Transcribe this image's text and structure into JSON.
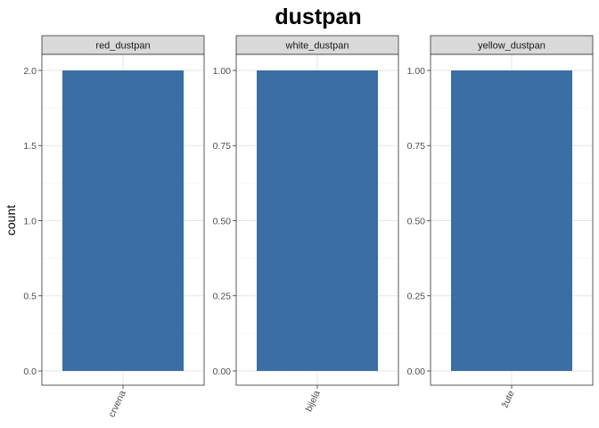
{
  "chart_data": {
    "type": "bar",
    "title": "dustpan",
    "ylabel": "count",
    "xlabel": "",
    "grid": true,
    "bar_color": "#3A6EA5",
    "panels": [
      {
        "strip": "red_dustpan",
        "categories": [
          "crvena"
        ],
        "values": [
          2
        ],
        "ylim": [
          0,
          2
        ],
        "yticks": [
          0,
          0.5,
          1.0,
          1.5,
          2.0
        ],
        "ytick_labels": [
          "0.0",
          "0.5",
          "1.0",
          "1.5",
          "2.0"
        ]
      },
      {
        "strip": "white_dustpan",
        "categories": [
          "bijela"
        ],
        "values": [
          1
        ],
        "ylim": [
          0,
          1
        ],
        "yticks": [
          0,
          0.25,
          0.5,
          0.75,
          1.0
        ],
        "ytick_labels": [
          "0.00",
          "0.25",
          "0.50",
          "0.75",
          "1.00"
        ]
      },
      {
        "strip": "yellow_dustpan",
        "categories": [
          "žute"
        ],
        "values": [
          1
        ],
        "ylim": [
          0,
          1
        ],
        "yticks": [
          0,
          0.25,
          0.5,
          0.75,
          1.0
        ],
        "ytick_labels": [
          "0.00",
          "0.25",
          "0.50",
          "0.75",
          "1.00"
        ]
      }
    ]
  }
}
